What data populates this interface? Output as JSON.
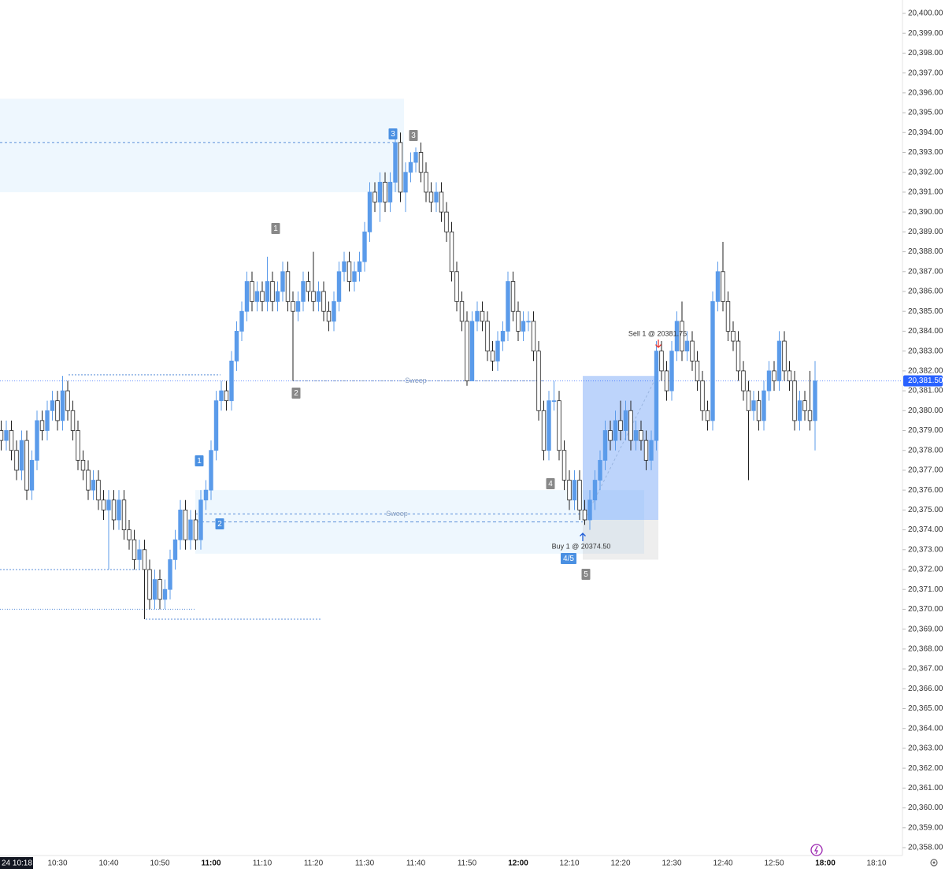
{
  "chart_data": {
    "type": "candlestick",
    "up_color": "#5b9bea",
    "down_color": "#ffffff",
    "wick_color": "#222222",
    "ylim": [
      20358,
      20400
    ],
    "yticks": [
      {
        "value": 20358,
        "label": "20,358.00"
      },
      {
        "value": 20359,
        "label": "20,359.00"
      },
      {
        "value": 20360,
        "label": "20,360.00"
      },
      {
        "value": 20361,
        "label": "20,361.00"
      },
      {
        "value": 20362,
        "label": "20,362.00"
      },
      {
        "value": 20363,
        "label": "20,363.00"
      },
      {
        "value": 20364,
        "label": "20,364.00"
      },
      {
        "value": 20365,
        "label": "20,365.00"
      },
      {
        "value": 20366,
        "label": "20,366.00"
      },
      {
        "value": 20367,
        "label": "20,367.00"
      },
      {
        "value": 20368,
        "label": "20,368.00"
      },
      {
        "value": 20369,
        "label": "20,369.00"
      },
      {
        "value": 20370,
        "label": "20,370.00"
      },
      {
        "value": 20371,
        "label": "20,371.00"
      },
      {
        "value": 20372,
        "label": "20,372.00"
      },
      {
        "value": 20373,
        "label": "20,373.00"
      },
      {
        "value": 20374,
        "label": "20,374.00"
      },
      {
        "value": 20375,
        "label": "20,375.00"
      },
      {
        "value": 20376,
        "label": "20,376.00"
      },
      {
        "value": 20377,
        "label": "20,377.00"
      },
      {
        "value": 20378,
        "label": "20,378.00"
      },
      {
        "value": 20379,
        "label": "20,379.00"
      },
      {
        "value": 20380,
        "label": "20,380.00"
      },
      {
        "value": 20381,
        "label": "20,381.00"
      },
      {
        "value": 20382,
        "label": "20,382.00"
      },
      {
        "value": 20383,
        "label": "20,383.00"
      },
      {
        "value": 20384,
        "label": "20,384.00"
      },
      {
        "value": 20385,
        "label": "20,385.00"
      },
      {
        "value": 20386,
        "label": "20,386.00"
      },
      {
        "value": 20387,
        "label": "20,387.00"
      },
      {
        "value": 20388,
        "label": "20,388.00"
      },
      {
        "value": 20389,
        "label": "20,389.00"
      },
      {
        "value": 20390,
        "label": "20,390.00"
      },
      {
        "value": 20391,
        "label": "20,391.00"
      },
      {
        "value": 20392,
        "label": "20,392.00"
      },
      {
        "value": 20393,
        "label": "20,393.00"
      },
      {
        "value": 20394,
        "label": "20,394.00"
      },
      {
        "value": 20395,
        "label": "20,395.00"
      },
      {
        "value": 20396,
        "label": "20,396.00"
      },
      {
        "value": 20397,
        "label": "20,397.00"
      },
      {
        "value": 20398,
        "label": "20,398.00"
      },
      {
        "value": 20399,
        "label": "20,399.00"
      },
      {
        "value": 20400,
        "label": "20,400.00"
      }
    ],
    "last_price": {
      "value": 20381.5,
      "label": "20,381.50"
    },
    "categories": [
      "24 10:18",
      null,
      null,
      null,
      null,
      null,
      null,
      null,
      null,
      null,
      null,
      null,
      "10:30",
      null,
      null,
      null,
      null,
      null,
      null,
      null,
      null,
      null,
      "10:40",
      null,
      null,
      null,
      null,
      null,
      null,
      null,
      null,
      null,
      "10:50",
      null,
      null,
      null,
      null,
      null,
      null,
      null,
      null,
      null,
      "11:00",
      null,
      null,
      null,
      null,
      null,
      null,
      null,
      null,
      null,
      "11:10",
      null,
      null,
      null,
      null,
      null,
      null,
      null,
      null,
      null,
      "11:20",
      null,
      null,
      null,
      null,
      null,
      null,
      null,
      null,
      null,
      "11:30",
      null,
      null,
      null,
      null,
      null,
      null,
      null,
      null,
      null,
      "11:40",
      null,
      null,
      null,
      null,
      null,
      null,
      null,
      null,
      null,
      "11:50",
      null,
      null,
      null,
      null,
      null,
      null,
      null,
      null,
      null,
      "12:00",
      null,
      null,
      null,
      null,
      null,
      null,
      null,
      null,
      null,
      "12:10",
      null,
      null,
      null,
      null,
      null,
      null,
      null,
      null,
      null,
      "12:20",
      null,
      null,
      null,
      null,
      null,
      null,
      null,
      null,
      null,
      "12:30",
      null,
      null,
      null,
      null,
      null,
      null,
      null,
      null,
      null,
      "12:40",
      null,
      null,
      null,
      null,
      null,
      null,
      null,
      null,
      null,
      "12:50",
      null,
      null,
      null,
      null,
      null,
      null,
      null,
      null,
      null,
      "18:00",
      null,
      null,
      null,
      null,
      null,
      null,
      null,
      null,
      null,
      "18:10"
    ],
    "candles": [
      null,
      [
        20379,
        20379.5,
        20378,
        20378.5
      ],
      [
        20378.5,
        20379.5,
        20378,
        20379
      ],
      [
        20379,
        20379.5,
        20377.5,
        20378
      ],
      [
        20378,
        20378.5,
        20376.5,
        20377
      ],
      [
        20377,
        20379,
        20376.5,
        20378.5
      ],
      [
        20378.5,
        20379,
        20375.5,
        20376
      ],
      [
        20376,
        20378,
        20375.5,
        20377.5
      ],
      [
        20377.5,
        20380,
        20377,
        20379.5
      ],
      [
        20379.5,
        20380,
        20378.5,
        20379
      ],
      [
        20379,
        20380.5,
        20378.5,
        20380
      ],
      [
        20380,
        20381,
        20379.5,
        20380.5
      ],
      [
        20380.5,
        20381,
        20379,
        20379.5
      ],
      [
        20379.5,
        20381.75,
        20379,
        20381
      ],
      [
        20381,
        20381.5,
        20379.5,
        20380
      ],
      [
        20380,
        20380.5,
        20378.5,
        20379
      ],
      [
        20379,
        20379.5,
        20377,
        20377.5
      ],
      [
        20377.5,
        20378,
        20376.5,
        20377
      ],
      [
        20377,
        20377.5,
        20375.5,
        20376
      ],
      [
        20376,
        20377,
        20375.5,
        20376.5
      ],
      [
        20376.5,
        20377,
        20375,
        20375.5
      ],
      [
        20375.5,
        20376,
        20374.5,
        20375
      ],
      [
        20375,
        20376,
        20372,
        20375.5
      ],
      [
        20375.5,
        20376,
        20374,
        20374.5
      ],
      [
        20374.5,
        20376,
        20374,
        20375.5
      ],
      [
        20375.5,
        20376,
        20373.5,
        20374
      ],
      [
        20374,
        20374.5,
        20373,
        20373.5
      ],
      [
        20373.5,
        20374,
        20372,
        20372.5
      ],
      [
        20372.5,
        20373.5,
        20372,
        20373
      ],
      [
        20373,
        20373.5,
        20369.5,
        20372
      ],
      [
        20372,
        20372.5,
        20370,
        20370.5
      ],
      [
        20370.5,
        20372,
        20370,
        20371.5
      ],
      [
        20371.5,
        20372,
        20370,
        20370.5
      ],
      [
        20370.5,
        20371.5,
        20370,
        20371
      ],
      [
        20371,
        20373,
        20370.5,
        20372.5
      ],
      [
        20372.5,
        20374,
        20372,
        20373.5
      ],
      [
        20373.5,
        20375.5,
        20373,
        20375
      ],
      [
        20375,
        20375.5,
        20373,
        20373.5
      ],
      [
        20373.5,
        20375,
        20373,
        20374.5
      ],
      [
        20374.5,
        20375,
        20373,
        20373.5
      ],
      [
        20373.5,
        20376,
        20373,
        20375.5
      ],
      [
        20375.5,
        20376.5,
        20375,
        20376
      ],
      [
        20376,
        20378.5,
        20375.5,
        20378
      ],
      [
        20378,
        20381,
        20377.5,
        20380.5
      ],
      [
        20380.5,
        20381.5,
        20380,
        20381
      ],
      [
        20381,
        20381.5,
        20380,
        20380.5
      ],
      [
        20380.5,
        20383,
        20380,
        20382.5
      ],
      [
        20382.5,
        20384.5,
        20382,
        20384
      ],
      [
        20384,
        20385.5,
        20383.5,
        20385
      ],
      [
        20385,
        20387,
        20384.5,
        20386.5
      ],
      [
        20386.5,
        20387,
        20385,
        20385.5
      ],
      [
        20385.5,
        20386.5,
        20385,
        20386
      ],
      [
        20386,
        20386.5,
        20385,
        20385.5
      ],
      [
        20385.5,
        20387.75,
        20385,
        20386.5
      ],
      [
        20386.5,
        20387,
        20385,
        20385.5
      ],
      [
        20385.5,
        20386.5,
        20385,
        20386
      ],
      [
        20386,
        20387.5,
        20385.5,
        20387
      ],
      [
        20387,
        20387.5,
        20385,
        20385.5
      ],
      [
        20385.5,
        20386,
        20381.5,
        20385
      ],
      [
        20385,
        20386,
        20384.5,
        20385.5
      ],
      [
        20385.5,
        20387,
        20385,
        20386.5
      ],
      [
        20386.5,
        20387,
        20385.5,
        20386
      ],
      [
        20386,
        20388,
        20385,
        20385.5
      ],
      [
        20385.5,
        20386.5,
        20385,
        20386
      ],
      [
        20386,
        20386.5,
        20384.5,
        20385
      ],
      [
        20385,
        20385.5,
        20384,
        20384.5
      ],
      [
        20384.5,
        20386,
        20384,
        20385.5
      ],
      [
        20385.5,
        20387.5,
        20385,
        20387
      ],
      [
        20387,
        20388,
        20386.5,
        20387.5
      ],
      [
        20387.5,
        20388,
        20386,
        20386.5
      ],
      [
        20386.5,
        20387.5,
        20386,
        20387
      ],
      [
        20387,
        20388,
        20386.5,
        20387.5
      ],
      [
        20387.5,
        20389.5,
        20387,
        20389
      ],
      [
        20389,
        20391.5,
        20388.5,
        20391
      ],
      [
        20391,
        20391.5,
        20390,
        20390.5
      ],
      [
        20390.5,
        20392,
        20389.5,
        20391.5
      ],
      [
        20391.5,
        20392,
        20390,
        20390.5
      ],
      [
        20390.5,
        20392,
        20390,
        20391.5
      ],
      [
        20391.5,
        20393.75,
        20391,
        20393.5
      ],
      [
        20393.5,
        20394,
        20390.5,
        20391
      ],
      [
        20391,
        20392.5,
        20390,
        20392
      ],
      [
        20392,
        20393,
        20391.5,
        20392.5
      ],
      [
        20392.5,
        20393.25,
        20392,
        20393
      ],
      [
        20393,
        20393.5,
        20391.5,
        20392
      ],
      [
        20392,
        20392.5,
        20390.5,
        20391
      ],
      [
        20391,
        20391.5,
        20390,
        20390.5
      ],
      [
        20390.5,
        20391.5,
        20390,
        20391
      ],
      [
        20391,
        20391.5,
        20389.5,
        20390
      ],
      [
        20390,
        20390.5,
        20388.5,
        20389
      ],
      [
        20389,
        20389.5,
        20386.5,
        20387
      ],
      [
        20387,
        20387.5,
        20385,
        20385.5
      ],
      [
        20385.5,
        20386,
        20384,
        20384.5
      ],
      [
        20384.5,
        20385,
        20381.25,
        20381.5
      ],
      [
        20381.5,
        20385,
        20381.5,
        20384.5
      ],
      [
        20384.5,
        20385.5,
        20384,
        20385
      ],
      [
        20385,
        20385.5,
        20384,
        20384.5
      ],
      [
        20384.5,
        20385,
        20382.5,
        20383
      ],
      [
        20383,
        20383.5,
        20382,
        20382.5
      ],
      [
        20382.5,
        20384,
        20382,
        20383.5
      ],
      [
        20383.5,
        20384.5,
        20383,
        20384
      ],
      [
        20384,
        20387,
        20383.5,
        20386.5
      ],
      [
        20386.5,
        20387,
        20384.5,
        20385
      ],
      [
        20385,
        20385.5,
        20383.5,
        20384
      ],
      [
        20384,
        20385,
        20383.5,
        20384.5
      ],
      [
        20384.5,
        20385,
        20384,
        20384.5
      ],
      [
        20384.5,
        20385,
        20382.5,
        20383
      ],
      [
        20383,
        20383.5,
        20379.5,
        20380
      ],
      [
        20380,
        20380.5,
        20377.5,
        20378
      ],
      [
        20378,
        20381,
        20377.5,
        20380.5
      ],
      [
        20380.5,
        20381.5,
        20380,
        20380.5
      ],
      [
        20380.5,
        20381,
        20377.5,
        20378
      ],
      [
        20378,
        20378.5,
        20376,
        20376.5
      ],
      [
        20376.5,
        20377,
        20375,
        20375.5
      ],
      [
        20375.5,
        20377,
        20375,
        20376.5
      ],
      [
        20376.5,
        20377,
        20374.5,
        20375
      ],
      [
        20375,
        20375.5,
        20374.25,
        20374.5
      ],
      [
        20374.5,
        20376,
        20374,
        20375.5
      ],
      [
        20375.5,
        20377,
        20375,
        20376.5
      ],
      [
        20376.5,
        20378,
        20376,
        20377.5
      ],
      [
        20377.5,
        20379.5,
        20377,
        20379
      ],
      [
        20379,
        20379.5,
        20378,
        20378.5
      ],
      [
        20378.5,
        20380,
        20378,
        20379.5
      ],
      [
        20379.5,
        20380.5,
        20378.5,
        20379
      ],
      [
        20379,
        20380.5,
        20378.5,
        20380
      ],
      [
        20380,
        20380.5,
        20378,
        20378.5
      ],
      [
        20378.5,
        20379.5,
        20378,
        20379
      ],
      [
        20379,
        20379.5,
        20378,
        20378.5
      ],
      [
        20378.5,
        20379,
        20377,
        20377.5
      ],
      [
        20377.5,
        20379,
        20377,
        20378.5
      ],
      [
        20378.5,
        20383.5,
        20378,
        20383
      ],
      [
        20383,
        20383.5,
        20381.5,
        20382
      ],
      [
        20382,
        20382.5,
        20380.5,
        20381
      ],
      [
        20381,
        20383.5,
        20380.5,
        20383
      ],
      [
        20383,
        20385,
        20382.5,
        20384.5
      ],
      [
        20384.5,
        20385.5,
        20382.5,
        20383
      ],
      [
        20383,
        20384,
        20382.5,
        20383.5
      ],
      [
        20383.5,
        20384,
        20382,
        20382.5
      ],
      [
        20382.5,
        20383,
        20381,
        20381.5
      ],
      [
        20381.5,
        20382,
        20379.5,
        20380
      ],
      [
        20380,
        20380.5,
        20379,
        20379.5
      ],
      [
        20379.5,
        20386,
        20379,
        20385.5
      ],
      [
        20385.5,
        20387.5,
        20385,
        20387
      ],
      [
        20387,
        20388.5,
        20385,
        20385.5
      ],
      [
        20385.5,
        20386,
        20383.5,
        20384
      ],
      [
        20384,
        20384.5,
        20383,
        20383.5
      ],
      [
        20383.5,
        20384,
        20381.5,
        20382
      ],
      [
        20382,
        20382.5,
        20380.5,
        20381
      ],
      [
        20381,
        20381.5,
        20376.5,
        20380
      ],
      [
        20380,
        20381,
        20379.5,
        20380.5
      ],
      [
        20380.5,
        20381,
        20379,
        20379.5
      ],
      [
        20379.5,
        20381.5,
        20379,
        20381
      ],
      [
        20381,
        20382.5,
        20380.5,
        20382
      ],
      [
        20382,
        20382.5,
        20381,
        20381.5
      ],
      [
        20381.5,
        20384,
        20381,
        20383.5
      ],
      [
        20383.5,
        20384,
        20381.5,
        20382
      ],
      [
        20382,
        20382.5,
        20381,
        20381.5
      ],
      [
        20381.5,
        20382,
        20379,
        20379.5
      ],
      [
        20379.5,
        20381,
        20379,
        20380.5
      ],
      [
        20380.5,
        20381,
        20379.5,
        20380
      ],
      [
        20380,
        20382,
        20379,
        20379.5
      ],
      [
        20379.5,
        20382.5,
        20378,
        20381.5
      ],
      null,
      null,
      null,
      null,
      null,
      null,
      null,
      null,
      null,
      null,
      null,
      null
    ],
    "zones": [
      {
        "top": 20395.7,
        "bottom": 20391
      },
      {
        "top": 20376,
        "bottom": 20372.8
      }
    ],
    "lines": [
      20393.5,
      20374.8,
      20374.4,
      20381.5,
      20381.8,
      20372,
      20370,
      20369.5
    ],
    "sweep_labels": [
      "Sweep",
      "Sweep"
    ],
    "position": {
      "target": 20381.75,
      "entry": 20374.5,
      "stop": 20372.5
    },
    "labels": [
      "3",
      "3",
      "1",
      "2",
      "1",
      "2",
      "4",
      "4/5",
      "5"
    ],
    "orders": [
      "Sell 1 @ 20381.75",
      "Buy 1 @ 20374.50"
    ]
  }
}
